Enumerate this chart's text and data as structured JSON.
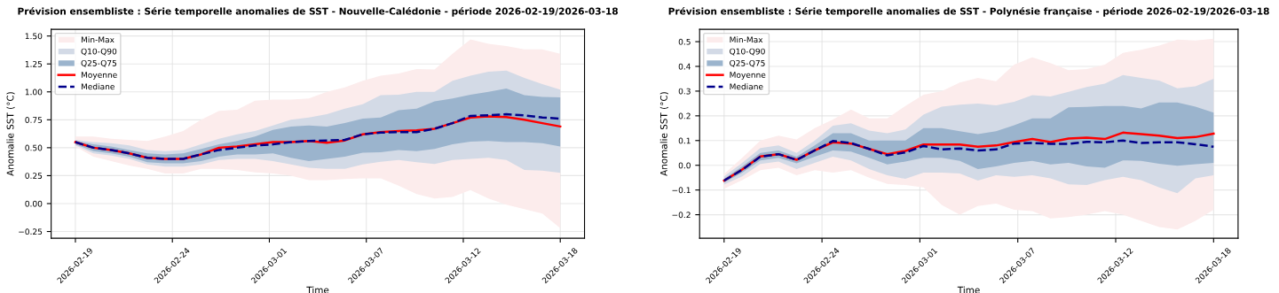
{
  "chart_data": [
    {
      "type": "line",
      "title": "Prévision ensembliste : Série temporelle anomalies de SST - Nouvelle-Calédonie - période 2026-02-19/2026-03-18",
      "xlabel": "Time",
      "ylabel": "Anomalie SST (°C)",
      "x": [
        "2026-02-19",
        "2026-02-20",
        "2026-02-21",
        "2026-02-22",
        "2026-02-23",
        "2026-02-24",
        "2026-02-25",
        "2026-02-26",
        "2026-02-27",
        "2026-02-28",
        "2026-03-01",
        "2026-03-02",
        "2026-03-03",
        "2026-03-04",
        "2026-03-05",
        "2026-03-06",
        "2026-03-07",
        "2026-03-08",
        "2026-03-09",
        "2026-03-10",
        "2026-03-11",
        "2026-03-12",
        "2026-03-13",
        "2026-03-14",
        "2026-03-15",
        "2026-03-16",
        "2026-03-17",
        "2026-03-18"
      ],
      "series": [
        {
          "name": "Min-Max",
          "color": "#fcecec",
          "values": [
            null,
            null,
            null,
            null,
            null,
            null,
            null,
            null,
            null,
            null,
            null,
            null,
            null,
            null,
            null,
            null,
            null,
            null,
            null,
            null,
            null,
            null,
            null,
            null,
            null,
            null,
            null,
            null
          ],
          "lower": [
            0.51,
            0.42,
            0.38,
            0.34,
            0.31,
            0.27,
            0.27,
            0.31,
            0.31,
            0.3,
            0.28,
            0.27,
            0.25,
            0.21,
            0.21,
            0.22,
            0.225,
            0.225,
            0.16,
            0.085,
            0.045,
            0.06,
            0.12,
            0.045,
            -0.01,
            -0.05,
            -0.09,
            -0.22
          ],
          "upper": [
            0.6,
            0.6,
            0.58,
            0.57,
            0.56,
            0.6,
            0.65,
            0.75,
            0.83,
            0.84,
            0.92,
            0.93,
            0.93,
            0.94,
            1.0,
            1.04,
            1.1,
            1.145,
            1.165,
            1.205,
            1.2,
            1.34,
            1.47,
            1.43,
            1.41,
            1.38,
            1.38,
            1.34
          ]
        },
        {
          "name": "Q10-Q90",
          "color": "#d3dae6",
          "values": [
            null,
            null,
            null,
            null,
            null,
            null,
            null,
            null,
            null,
            null,
            null,
            null,
            null,
            null,
            null,
            null,
            null,
            null,
            null,
            null,
            null,
            null,
            null,
            null,
            null,
            null,
            null,
            null
          ],
          "lower": [
            0.52,
            0.45,
            0.43,
            0.4,
            0.35,
            0.33,
            0.33,
            0.35,
            0.39,
            0.4,
            0.4,
            0.38,
            0.35,
            0.32,
            0.31,
            0.31,
            0.35,
            0.375,
            0.39,
            0.37,
            0.355,
            0.39,
            0.4,
            0.41,
            0.39,
            0.3,
            0.295,
            0.275
          ],
          "upper": [
            0.57,
            0.55,
            0.54,
            0.52,
            0.48,
            0.47,
            0.48,
            0.53,
            0.58,
            0.62,
            0.65,
            0.7,
            0.75,
            0.77,
            0.8,
            0.85,
            0.89,
            0.97,
            0.975,
            1.0,
            1.0,
            1.1,
            1.145,
            1.18,
            1.19,
            1.125,
            1.07,
            1.02
          ]
        },
        {
          "name": "Q25-Q75",
          "color": "#9bb4cd",
          "values": [
            null,
            null,
            null,
            null,
            null,
            null,
            null,
            null,
            null,
            null,
            null,
            null,
            null,
            null,
            null,
            null,
            null,
            null,
            null,
            null,
            null,
            null,
            null,
            null,
            null,
            null,
            null,
            null
          ],
          "lower": [
            0.53,
            0.47,
            0.45,
            0.42,
            0.37,
            0.36,
            0.36,
            0.38,
            0.42,
            0.44,
            0.44,
            0.45,
            0.41,
            0.38,
            0.4,
            0.42,
            0.455,
            0.46,
            0.48,
            0.47,
            0.49,
            0.53,
            0.555,
            0.56,
            0.55,
            0.55,
            0.54,
            0.51
          ],
          "upper": [
            0.56,
            0.53,
            0.51,
            0.48,
            0.45,
            0.44,
            0.45,
            0.49,
            0.53,
            0.56,
            0.6,
            0.66,
            0.69,
            0.7,
            0.69,
            0.72,
            0.76,
            0.77,
            0.836,
            0.85,
            0.915,
            0.94,
            0.975,
            1.0,
            1.03,
            0.97,
            0.955,
            0.95
          ]
        },
        {
          "name": "Moyenne",
          "color": "#ff0000",
          "line_style": "solid",
          "values": [
            0.55,
            0.5,
            0.48,
            0.45,
            0.41,
            0.4,
            0.4,
            0.44,
            0.5,
            0.51,
            0.53,
            0.55,
            0.55,
            0.56,
            0.545,
            0.565,
            0.62,
            0.64,
            0.65,
            0.655,
            0.67,
            0.72,
            0.77,
            0.78,
            0.775,
            0.75,
            0.72,
            0.69
          ]
        },
        {
          "name": "Mediane",
          "color": "#00008b",
          "line_style": "dashed",
          "values": [
            0.55,
            0.5,
            0.48,
            0.45,
            0.41,
            0.4,
            0.4,
            0.44,
            0.48,
            0.5,
            0.52,
            0.53,
            0.55,
            0.56,
            0.565,
            0.57,
            0.62,
            0.635,
            0.64,
            0.64,
            0.67,
            0.72,
            0.785,
            0.79,
            0.8,
            0.79,
            0.77,
            0.76
          ]
        }
      ],
      "xlim": [
        "2026-02-17T15:36",
        "2026-03-19T08:24"
      ],
      "xticks": [
        {
          "value": "2026-02-19T00:00",
          "label": "2026-02-19"
        },
        {
          "value": "2026-02-24T09:36",
          "label": "2026-02-24"
        },
        {
          "value": "2026-03-01T19:12",
          "label": "2026-03-01"
        },
        {
          "value": "2026-03-07T04:48",
          "label": "2026-03-07"
        },
        {
          "value": "2026-03-12T14:24",
          "label": "2026-03-12"
        },
        {
          "value": "2026-03-18T00:00",
          "label": "2026-03-18"
        }
      ],
      "ylim": [
        -0.31,
        1.56
      ],
      "yticks": [
        {
          "value": -0.25,
          "label": "−0.25"
        },
        {
          "value": 0,
          "label": "0.00"
        },
        {
          "value": 0.25,
          "label": "0.25"
        },
        {
          "value": 0.5,
          "label": "0.50"
        },
        {
          "value": 0.75,
          "label": "0.75"
        },
        {
          "value": 1.0,
          "label": "1.00"
        },
        {
          "value": 1.25,
          "label": "1.25"
        },
        {
          "value": 1.5,
          "label": "1.50"
        }
      ],
      "grid": true,
      "legend": "top left"
    },
    {
      "type": "line",
      "title": "Prévision ensembliste : Série temporelle anomalies de SST - Polynésie française - période 2026-02-19/2026-03-18",
      "xlabel": "Time",
      "ylabel": "Anomalie SST (°C)",
      "x": [
        "2026-02-19",
        "2026-02-20",
        "2026-02-21",
        "2026-02-22",
        "2026-02-23",
        "2026-02-24",
        "2026-02-25",
        "2026-02-26",
        "2026-02-27",
        "2026-02-28",
        "2026-03-01",
        "2026-03-02",
        "2026-03-03",
        "2026-03-04",
        "2026-03-05",
        "2026-03-06",
        "2026-03-07",
        "2026-03-08",
        "2026-03-09",
        "2026-03-10",
        "2026-03-11",
        "2026-03-12",
        "2026-03-13",
        "2026-03-14",
        "2026-03-15",
        "2026-03-16",
        "2026-03-17",
        "2026-03-18"
      ],
      "series": [
        {
          "name": "Min-Max",
          "color": "#fcecec",
          "values": [
            null,
            null,
            null,
            null,
            null,
            null,
            null,
            null,
            null,
            null,
            null,
            null,
            null,
            null,
            null,
            null,
            null,
            null,
            null,
            null,
            null,
            null,
            null,
            null,
            null,
            null,
            null,
            null
          ],
          "lower": [
            -0.095,
            -0.06,
            -0.02,
            -0.01,
            -0.04,
            -0.02,
            -0.03,
            -0.02,
            -0.05,
            -0.075,
            -0.08,
            -0.09,
            -0.16,
            -0.2,
            -0.165,
            -0.155,
            -0.18,
            -0.185,
            -0.215,
            -0.21,
            -0.2,
            -0.185,
            -0.2,
            -0.225,
            -0.25,
            -0.26,
            -0.225,
            -0.18
          ],
          "upper": [
            -0.035,
            0.03,
            0.1,
            0.12,
            0.105,
            0.15,
            0.185,
            0.225,
            0.19,
            0.19,
            0.24,
            0.285,
            0.3,
            0.335,
            0.353,
            0.34,
            0.407,
            0.437,
            0.413,
            0.385,
            0.389,
            0.407,
            0.455,
            0.467,
            0.484,
            0.508,
            0.505,
            0.512
          ]
        },
        {
          "name": "Q10-Q90",
          "color": "#d3dae6",
          "values": [
            null,
            null,
            null,
            null,
            null,
            null,
            null,
            null,
            null,
            null,
            null,
            null,
            null,
            null,
            null,
            null,
            null,
            null,
            null,
            null,
            null,
            null,
            null,
            null,
            null,
            null,
            null,
            null
          ],
          "lower": [
            -0.078,
            -0.045,
            0.005,
            0.015,
            -0.015,
            0.01,
            0.035,
            0.02,
            -0.015,
            -0.04,
            -0.055,
            -0.03,
            -0.03,
            -0.033,
            -0.062,
            -0.04,
            -0.047,
            -0.04,
            -0.053,
            -0.077,
            -0.08,
            -0.06,
            -0.047,
            -0.06,
            -0.09,
            -0.113,
            -0.053,
            -0.04
          ],
          "upper": [
            -0.045,
            0.01,
            0.07,
            0.08,
            0.05,
            0.1,
            0.16,
            0.17,
            0.14,
            0.13,
            0.145,
            0.205,
            0.237,
            0.245,
            0.25,
            0.242,
            0.257,
            0.284,
            0.278,
            0.297,
            0.317,
            0.33,
            0.365,
            0.353,
            0.343,
            0.311,
            0.319,
            0.35
          ]
        },
        {
          "name": "Q25-Q75",
          "color": "#9bb4cd",
          "values": [
            null,
            null,
            null,
            null,
            null,
            null,
            null,
            null,
            null,
            null,
            null,
            null,
            null,
            null,
            null,
            null,
            null,
            null,
            null,
            null,
            null,
            null,
            null,
            null,
            null,
            null,
            null,
            null
          ],
          "lower": [
            -0.07,
            -0.03,
            0.02,
            0.03,
            0.008,
            0.035,
            0.06,
            0.055,
            0.03,
            0.003,
            0.015,
            0.03,
            0.03,
            0.018,
            -0.015,
            -0.005,
            0.01,
            0.018,
            0.003,
            0.01,
            -0.005,
            -0.01,
            0.02,
            0.018,
            0.006,
            -0.002,
            0.004,
            0.01
          ],
          "upper": [
            -0.055,
            -0.005,
            0.05,
            0.06,
            0.035,
            0.08,
            0.13,
            0.13,
            0.1,
            0.1,
            0.1,
            0.15,
            0.15,
            0.138,
            0.126,
            0.138,
            0.162,
            0.19,
            0.19,
            0.234,
            0.236,
            0.24,
            0.24,
            0.23,
            0.254,
            0.254,
            0.237,
            0.213
          ]
        },
        {
          "name": "Moyenne",
          "color": "#ff0000",
          "line_style": "solid",
          "values": [
            -0.062,
            -0.017,
            0.036,
            0.045,
            0.022,
            0.06,
            0.093,
            0.088,
            0.066,
            0.045,
            0.058,
            0.084,
            0.084,
            0.084,
            0.075,
            0.08,
            0.094,
            0.106,
            0.094,
            0.108,
            0.112,
            0.106,
            0.132,
            0.126,
            0.12,
            0.11,
            0.114,
            0.128
          ]
        },
        {
          "name": "Mediane",
          "color": "#00008b",
          "line_style": "dashed",
          "values": [
            -0.062,
            -0.018,
            0.035,
            0.045,
            0.022,
            0.06,
            0.098,
            0.09,
            0.066,
            0.04,
            0.052,
            0.078,
            0.064,
            0.068,
            0.06,
            0.064,
            0.088,
            0.09,
            0.087,
            0.087,
            0.095,
            0.093,
            0.1,
            0.09,
            0.093,
            0.093,
            0.085,
            0.075
          ]
        }
      ],
      "xlim": [
        "2026-02-17T15:36",
        "2026-03-19T08:24"
      ],
      "xticks": [
        {
          "value": "2026-02-19T00:00",
          "label": "2026-02-19"
        },
        {
          "value": "2026-02-24T09:36",
          "label": "2026-02-24"
        },
        {
          "value": "2026-03-01T19:12",
          "label": "2026-03-01"
        },
        {
          "value": "2026-03-07T04:48",
          "label": "2026-03-07"
        },
        {
          "value": "2026-03-12T14:24",
          "label": "2026-03-12"
        },
        {
          "value": "2026-03-18T00:00",
          "label": "2026-03-18"
        }
      ],
      "ylim": [
        -0.295,
        0.55
      ],
      "yticks": [
        {
          "value": -0.2,
          "label": "−0.2"
        },
        {
          "value": -0.1,
          "label": "−0.1"
        },
        {
          "value": 0,
          "label": "0.0"
        },
        {
          "value": 0.1,
          "label": "0.1"
        },
        {
          "value": 0.2,
          "label": "0.2"
        },
        {
          "value": 0.3,
          "label": "0.3"
        },
        {
          "value": 0.4,
          "label": "0.4"
        },
        {
          "value": 0.5,
          "label": "0.5"
        }
      ],
      "grid": true,
      "legend": "top left"
    }
  ]
}
